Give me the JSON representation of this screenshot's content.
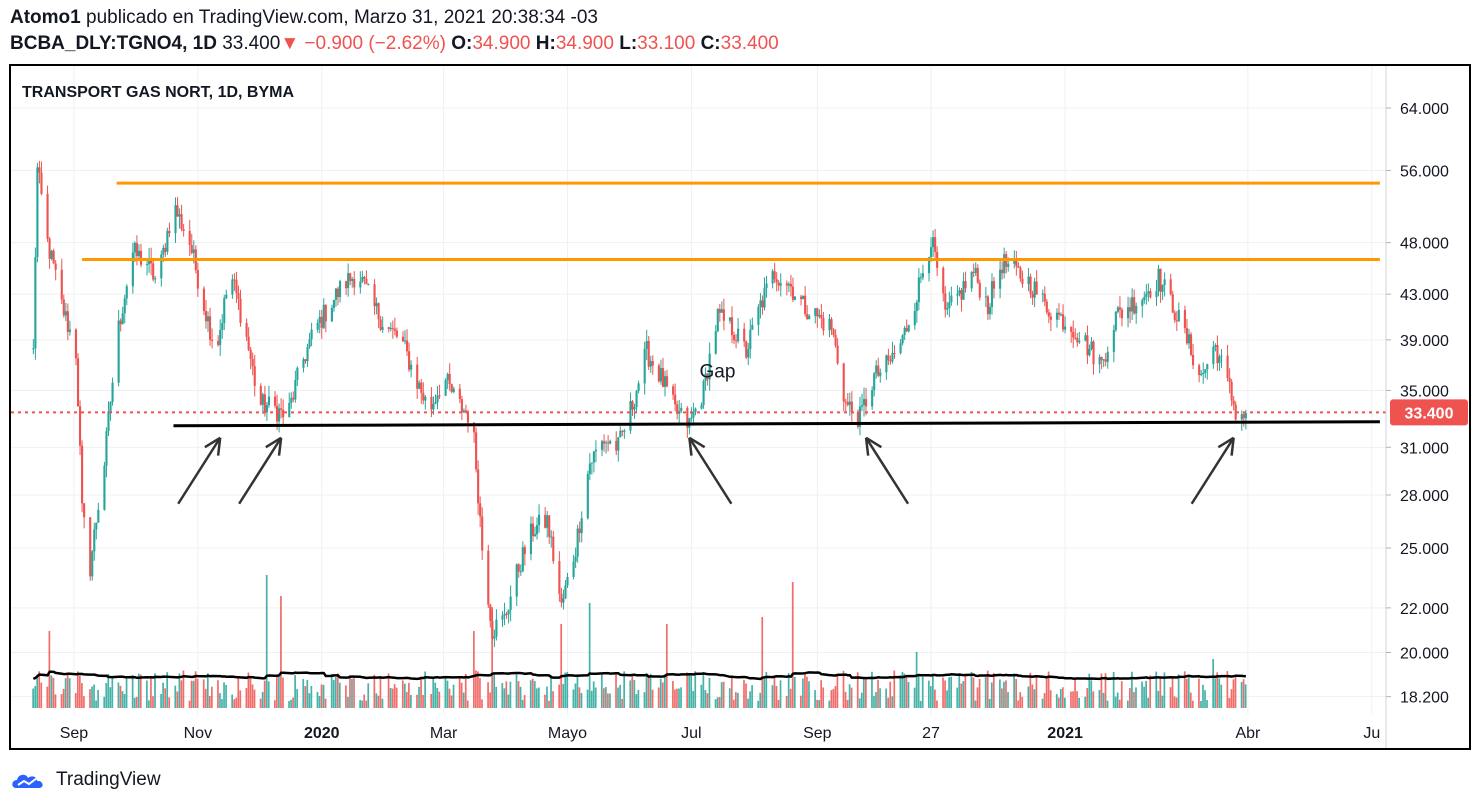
{
  "header": {
    "author": "Atomo1",
    "published_text": "publicado en TradingView.com, Marzo 31, 2021 20:38:34 -03",
    "symbol": "BCBA_DLY:TGNO4, 1D",
    "last": "33.400",
    "arrow": "▼",
    "change": "−0.900 (−2.62%)",
    "o_label": "O:",
    "o_value": "34.900",
    "h_label": "H:",
    "h_value": "34.900",
    "l_label": "L:",
    "l_value": "33.100",
    "c_label": "C:",
    "c_value": "33.400"
  },
  "footer": {
    "brand": "TradingView",
    "brand_icon": "tradingview-cloud-icon"
  },
  "colors": {
    "up": "#26a69a",
    "down": "#ef5350",
    "resistance": "#ff9800",
    "support": "#000000",
    "price_tag": "#ef5350"
  },
  "chart_data": {
    "type": "candlestick",
    "title": "TRANSPORT GAS NORT, 1D, BYMA",
    "y_scale": "log",
    "ylim": [
      17.5,
      70
    ],
    "y_ticks": [
      {
        "value": 64,
        "label": "64.000"
      },
      {
        "value": 56,
        "label": "56.000"
      },
      {
        "value": 48,
        "label": "48.000"
      },
      {
        "value": 43,
        "label": "43.000"
      },
      {
        "value": 39,
        "label": "39.000"
      },
      {
        "value": 35,
        "label": "35.000"
      },
      {
        "value": 31,
        "label": "31.000"
      },
      {
        "value": 28,
        "label": "28.000"
      },
      {
        "value": 25,
        "label": "25.000"
      },
      {
        "value": 22,
        "label": "22.000"
      },
      {
        "value": 20,
        "label": "20.000"
      },
      {
        "value": 18.2,
        "label": "18.200"
      }
    ],
    "x_ticks": [
      {
        "date": "2019-09",
        "label": "Sep",
        "bold": false
      },
      {
        "date": "2019-11",
        "label": "Nov",
        "bold": false
      },
      {
        "date": "2020-01",
        "label": "2020",
        "bold": true
      },
      {
        "date": "2020-03",
        "label": "Mar",
        "bold": false
      },
      {
        "date": "2020-05",
        "label": "Mayo",
        "bold": false
      },
      {
        "date": "2020-07",
        "label": "Jul",
        "bold": false
      },
      {
        "date": "2020-09",
        "label": "Sep",
        "bold": false
      },
      {
        "date": "2020-10-27",
        "label": "27",
        "bold": false
      },
      {
        "date": "2021-01",
        "label": "2021",
        "bold": true
      },
      {
        "date": "2021-04",
        "label": "Abr",
        "bold": false
      },
      {
        "date": "2021-06",
        "label": "Ju",
        "bold": false
      }
    ],
    "last_price": {
      "value": 33.4,
      "label": "33.400"
    },
    "resistance_lines": [
      {
        "from": "2019-09-22",
        "to": "2021-06-05",
        "value": 54.5
      },
      {
        "from": "2019-09-05",
        "to": "2021-06-05",
        "value": 46.3
      }
    ],
    "support_line": {
      "from": "2019-10-20",
      "to": "2021-06-05",
      "value": 32.6
    },
    "annotations": [
      {
        "text": "Gap",
        "date": "2020-07-05",
        "value": 36.0
      }
    ],
    "arrow_markers": [
      "2019-11-12",
      "2019-12-12",
      "2020-06-30",
      "2020-09-25",
      "2021-03-25"
    ],
    "price_path": [
      [
        "2019-08-12",
        38.0
      ],
      [
        "2019-08-14",
        56.0
      ],
      [
        "2019-08-19",
        48.0
      ],
      [
        "2019-08-26",
        42.0
      ],
      [
        "2019-09-02",
        38.0
      ],
      [
        "2019-09-05",
        27.0
      ],
      [
        "2019-09-09",
        24.0
      ],
      [
        "2019-09-16",
        30.0
      ],
      [
        "2019-09-23",
        40.0
      ],
      [
        "2019-09-30",
        47.0
      ],
      [
        "2019-10-07",
        46.0
      ],
      [
        "2019-10-12",
        44.0
      ],
      [
        "2019-10-20",
        52.0
      ],
      [
        "2019-10-28",
        48.0
      ],
      [
        "2019-11-04",
        42.0
      ],
      [
        "2019-11-10",
        38.0
      ],
      [
        "2019-11-17",
        45.0
      ],
      [
        "2019-11-24",
        40.0
      ],
      [
        "2019-12-01",
        34.0
      ],
      [
        "2019-12-08",
        33.8
      ],
      [
        "2019-12-15",
        33.0
      ],
      [
        "2019-12-22",
        37.0
      ],
      [
        "2019-12-29",
        40.0
      ],
      [
        "2020-01-05",
        42.0
      ],
      [
        "2020-01-12",
        44.0
      ],
      [
        "2020-01-19",
        45.0
      ],
      [
        "2020-01-26",
        42.0
      ],
      [
        "2020-02-02",
        40.0
      ],
      [
        "2020-02-09",
        39.0
      ],
      [
        "2020-02-16",
        36.0
      ],
      [
        "2020-02-23",
        33.5
      ],
      [
        "2020-03-01",
        36.0
      ],
      [
        "2020-03-08",
        34.0
      ],
      [
        "2020-03-15",
        33.0
      ],
      [
        "2020-03-20",
        25.0
      ],
      [
        "2020-03-25",
        21.0
      ],
      [
        "2020-03-31",
        21.5
      ],
      [
        "2020-04-07",
        24.0
      ],
      [
        "2020-04-14",
        26.0
      ],
      [
        "2020-04-21",
        26.5
      ],
      [
        "2020-04-28",
        22.0
      ],
      [
        "2020-05-05",
        25.0
      ],
      [
        "2020-05-12",
        30.0
      ],
      [
        "2020-05-19",
        31.5
      ],
      [
        "2020-05-26",
        31.0
      ],
      [
        "2020-06-02",
        34.0
      ],
      [
        "2020-06-09",
        38.0
      ],
      [
        "2020-06-16",
        36.0
      ],
      [
        "2020-06-23",
        33.5
      ],
      [
        "2020-06-30",
        32.5
      ],
      [
        "2020-07-07",
        35.0
      ],
      [
        "2020-07-14",
        41.0
      ],
      [
        "2020-07-21",
        40.0
      ],
      [
        "2020-07-28",
        38.0
      ],
      [
        "2020-08-04",
        42.0
      ],
      [
        "2020-08-11",
        45.0
      ],
      [
        "2020-08-18",
        44.0
      ],
      [
        "2020-08-25",
        42.0
      ],
      [
        "2020-09-01",
        41.0
      ],
      [
        "2020-09-08",
        40.0
      ],
      [
        "2020-09-15",
        34.0
      ],
      [
        "2020-09-22",
        33.0
      ],
      [
        "2020-09-29",
        36.0
      ],
      [
        "2020-10-06",
        37.0
      ],
      [
        "2020-10-13",
        39.0
      ],
      [
        "2020-10-20",
        43.0
      ],
      [
        "2020-10-27",
        48.5
      ],
      [
        "2020-11-03",
        41.0
      ],
      [
        "2020-11-10",
        43.0
      ],
      [
        "2020-11-17",
        45.0
      ],
      [
        "2020-11-24",
        42.0
      ],
      [
        "2020-12-01",
        46.0
      ],
      [
        "2020-12-08",
        45.0
      ],
      [
        "2020-12-15",
        44.0
      ],
      [
        "2020-12-22",
        42.0
      ],
      [
        "2020-12-29",
        41.0
      ],
      [
        "2021-01-05",
        40.0
      ],
      [
        "2021-01-12",
        38.5
      ],
      [
        "2021-01-19",
        37.0
      ],
      [
        "2021-01-26",
        41.0
      ],
      [
        "2021-02-02",
        42.0
      ],
      [
        "2021-02-09",
        43.0
      ],
      [
        "2021-02-16",
        44.5
      ],
      [
        "2021-02-23",
        42.0
      ],
      [
        "2021-03-02",
        39.0
      ],
      [
        "2021-03-09",
        36.0
      ],
      [
        "2021-03-16",
        38.5
      ],
      [
        "2021-03-23",
        35.0
      ],
      [
        "2021-03-27",
        33.0
      ],
      [
        "2021-03-31",
        33.4
      ]
    ],
    "volume_spikes": [
      [
        "2019-08-20",
        0.55
      ],
      [
        "2019-12-05",
        0.95
      ],
      [
        "2019-12-12",
        0.8
      ],
      [
        "2020-03-15",
        0.55
      ],
      [
        "2020-03-25",
        0.72
      ],
      [
        "2020-04-28",
        0.6
      ],
      [
        "2020-05-12",
        0.75
      ],
      [
        "2020-06-20",
        0.6
      ],
      [
        "2020-08-05",
        0.65
      ],
      [
        "2020-08-20",
        0.9
      ],
      [
        "2020-10-20",
        0.4
      ],
      [
        "2021-03-15",
        0.35
      ]
    ]
  }
}
